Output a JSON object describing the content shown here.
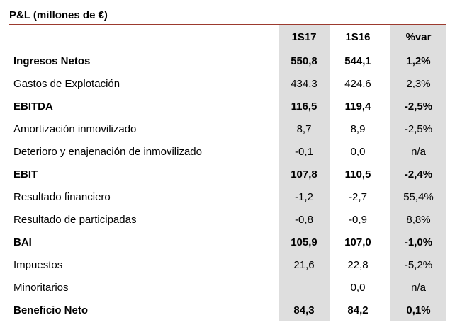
{
  "title": "P&L (millones de €)",
  "columns": [
    "1S17",
    "1S16",
    "%var"
  ],
  "rows": [
    {
      "label": "Ingresos Netos",
      "v1": "550,8",
      "v2": "544,1",
      "v3": "1,2%",
      "bold": true
    },
    {
      "label": "Gastos de Explotación",
      "v1": "434,3",
      "v2": "424,6",
      "v3": "2,3%",
      "bold": false
    },
    {
      "label": "EBITDA",
      "v1": "116,5",
      "v2": "119,4",
      "v3": "-2,5%",
      "bold": true
    },
    {
      "label": "Amortización inmovilizado",
      "v1": "8,7",
      "v2": "8,9",
      "v3": "-2,5%",
      "bold": false
    },
    {
      "label": "Deterioro y enajenación de inmovilizado",
      "v1": "-0,1",
      "v2": "0,0",
      "v3": "n/a",
      "bold": false
    },
    {
      "label": "EBIT",
      "v1": "107,8",
      "v2": "110,5",
      "v3": "-2,4%",
      "bold": true
    },
    {
      "label": "Resultado financiero",
      "v1": "-1,2",
      "v2": "-2,7",
      "v3": "55,4%",
      "bold": false
    },
    {
      "label": "Resultado de participadas",
      "v1": "-0,8",
      "v2": "-0,9",
      "v3": "8,8%",
      "bold": false
    },
    {
      "label": "BAI",
      "v1": "105,9",
      "v2": "107,0",
      "v3": "-1,0%",
      "bold": true
    },
    {
      "label": "Impuestos",
      "v1": "21,6",
      "v2": "22,8",
      "v3": "-5,2%",
      "bold": false
    },
    {
      "label": "Minoritarios",
      "v1": "",
      "v2": "0,0",
      "v3": "n/a",
      "bold": false
    },
    {
      "label": "Beneficio Neto",
      "v1": "84,3",
      "v2": "84,2",
      "v3": "0,1%",
      "bold": true
    }
  ]
}
